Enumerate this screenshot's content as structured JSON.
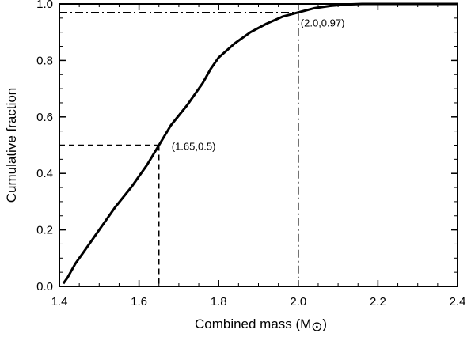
{
  "chart_data": {
    "type": "line",
    "xlabel": "Combined mass (M",
    "xlabel_suffix": ")",
    "xlabel_symbol": "sun-symbol",
    "ylabel": "Cumulative fraction",
    "xlim": [
      1.4,
      2.4
    ],
    "ylim": [
      0.0,
      1.0
    ],
    "xticks": [
      1.4,
      1.6,
      1.8,
      2.0,
      2.2,
      2.4
    ],
    "xtick_labels": [
      "1.4",
      "1.6",
      "1.8",
      "2.0",
      "2.2",
      "2.4"
    ],
    "yticks": [
      0.0,
      0.2,
      0.4,
      0.6,
      0.8,
      1.0
    ],
    "ytick_labels": [
      "0.0",
      "0.2",
      "0.4",
      "0.6",
      "0.8",
      "1.0"
    ],
    "grid": false,
    "series": [
      {
        "style": "solid",
        "x": [
          1.41,
          1.42,
          1.44,
          1.46,
          1.5,
          1.54,
          1.58,
          1.62,
          1.65,
          1.68,
          1.72,
          1.76,
          1.78,
          1.8,
          1.84,
          1.88,
          1.92,
          1.96,
          2.0,
          2.04,
          2.08,
          2.12,
          2.16,
          2.2,
          2.3,
          2.4
        ],
        "y": [
          0.01,
          0.03,
          0.08,
          0.12,
          0.2,
          0.28,
          0.35,
          0.43,
          0.5,
          0.57,
          0.64,
          0.72,
          0.77,
          0.81,
          0.86,
          0.9,
          0.93,
          0.955,
          0.97,
          0.985,
          0.993,
          0.998,
          1.0,
          1.0,
          1.0,
          1.0
        ]
      }
    ],
    "annotations": [
      {
        "label": "(1.65,0.5)",
        "x": 1.65,
        "y": 0.5,
        "style": "dashed"
      },
      {
        "label": "(2.0,0.97)",
        "x": 2.0,
        "y": 0.97,
        "style": "dashdot"
      }
    ]
  }
}
